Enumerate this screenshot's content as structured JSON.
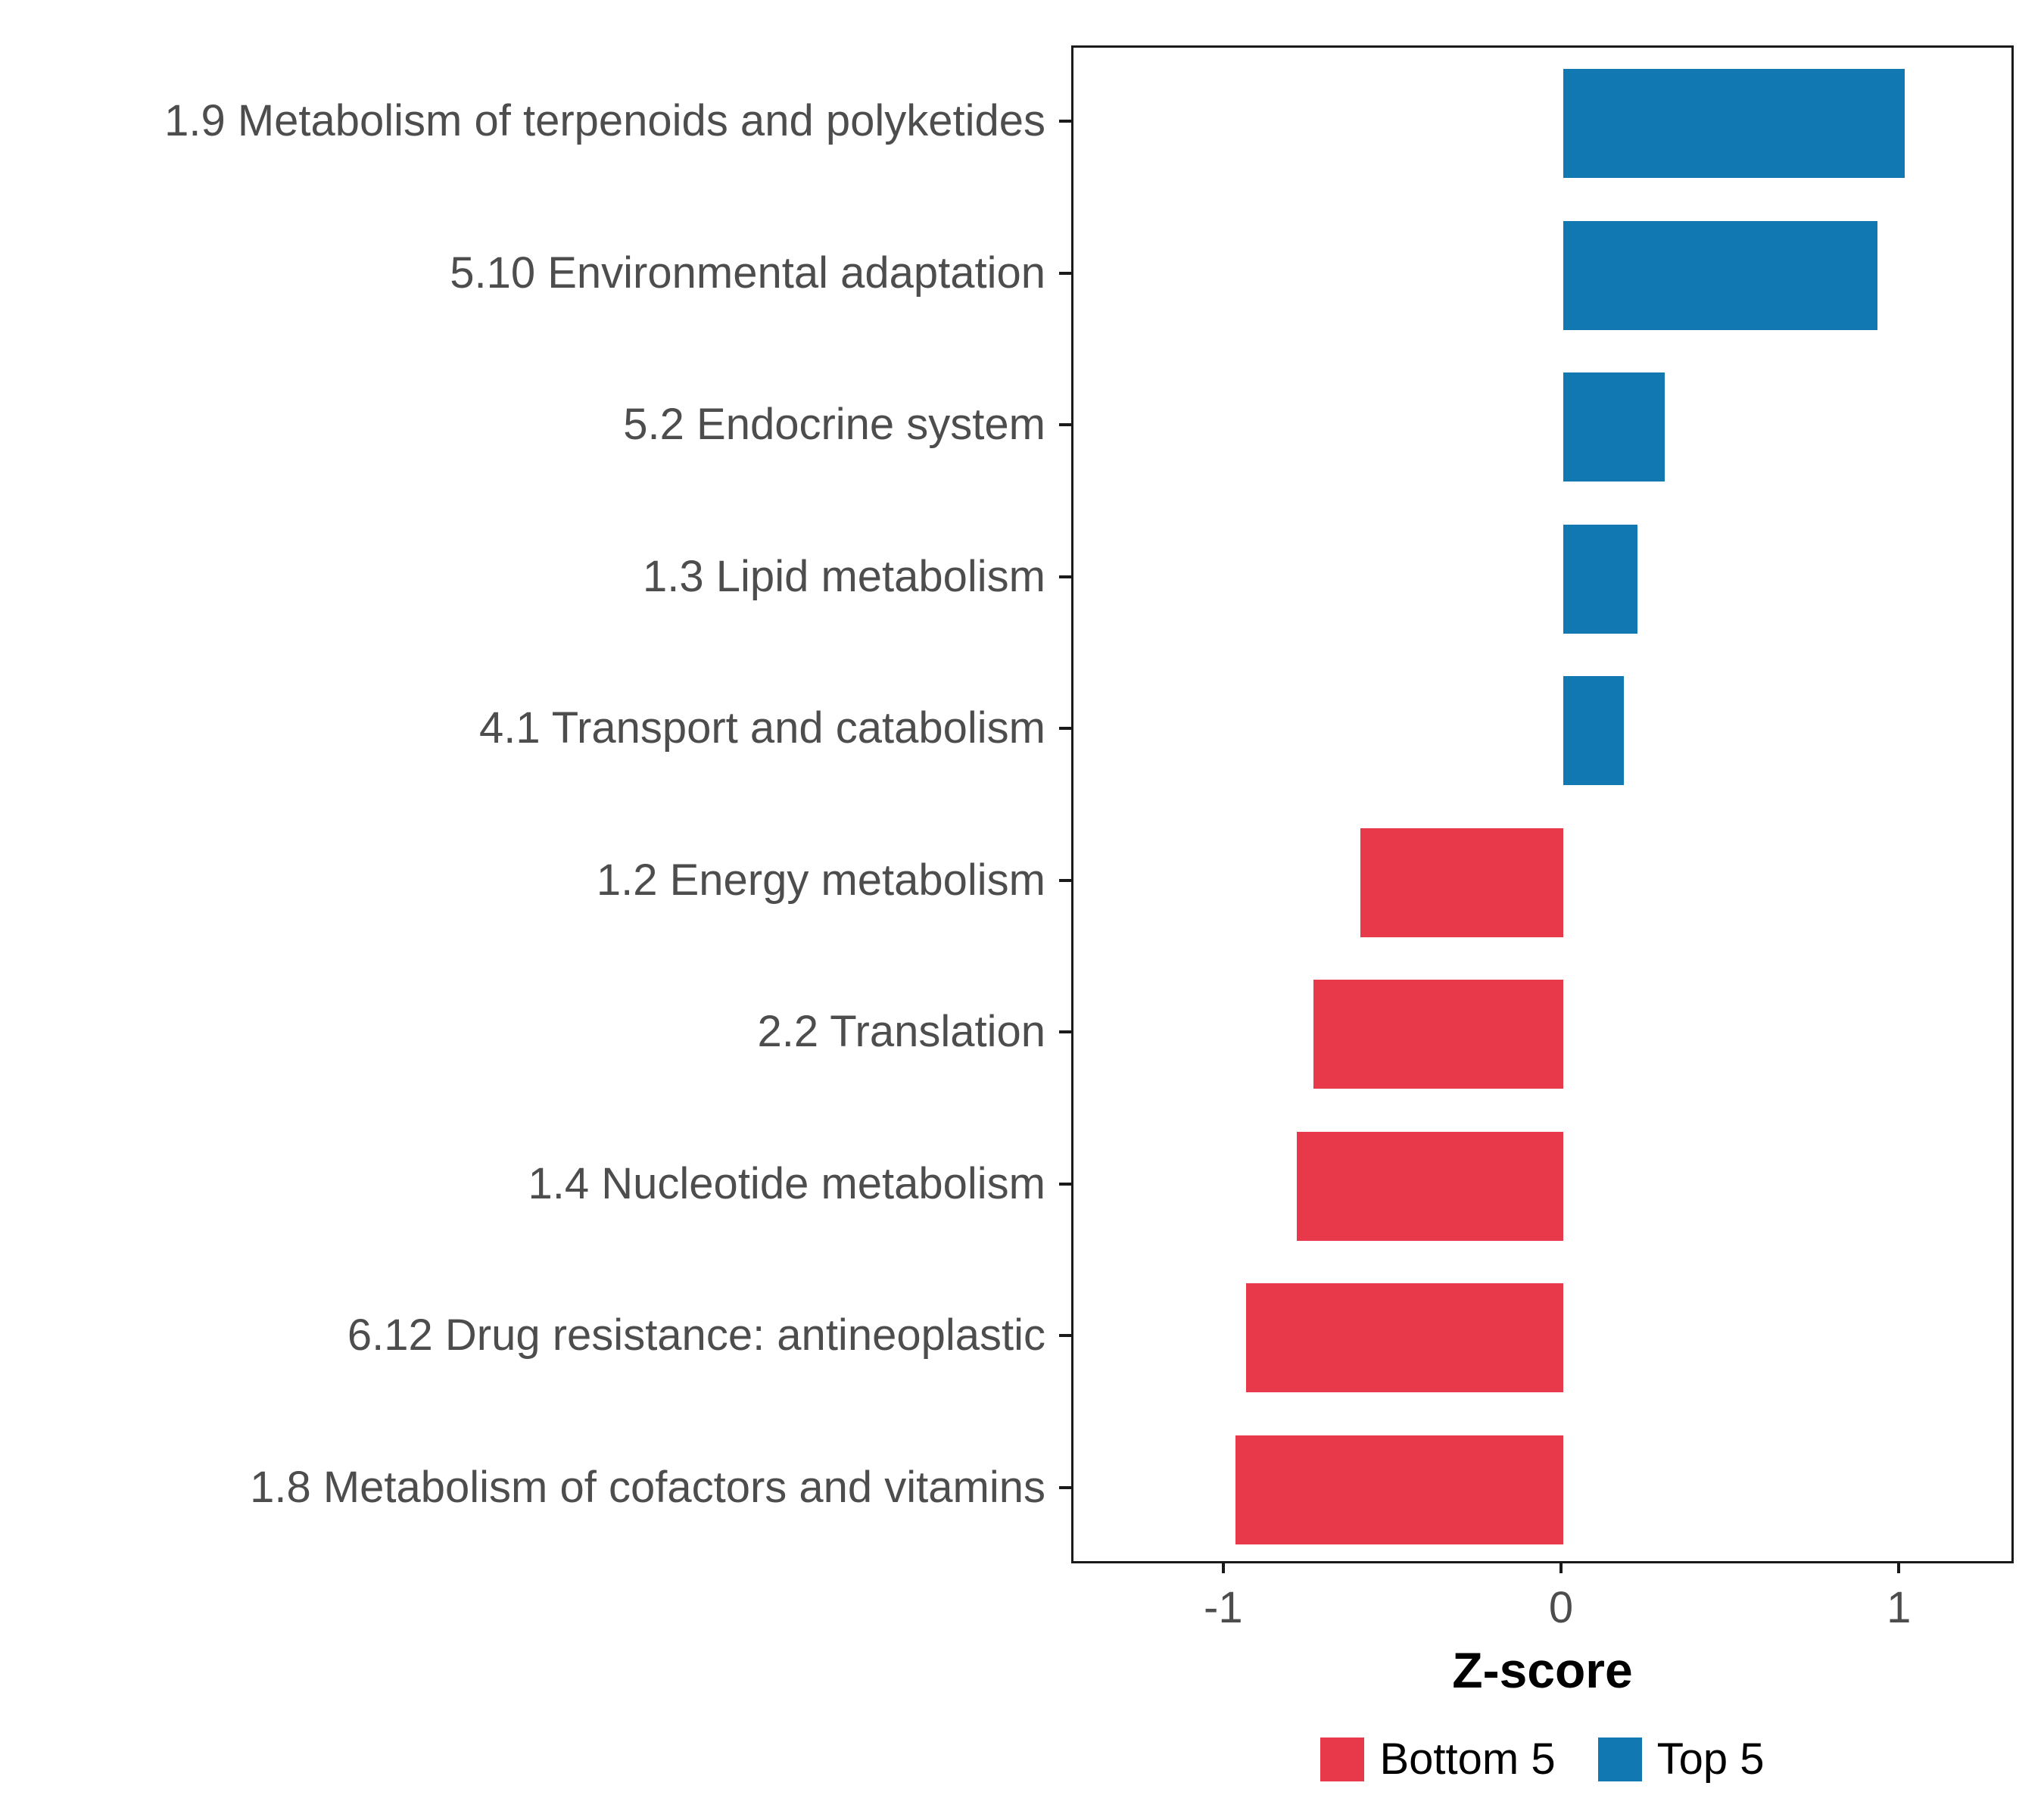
{
  "chart_data": {
    "type": "bar",
    "orientation": "horizontal",
    "title": "",
    "xlabel": "Z-score",
    "ylabel": "",
    "xlim": [
      -1.45,
      1.34
    ],
    "xticks": [
      "-1",
      "0",
      "1"
    ],
    "xtick_values": [
      -1,
      0,
      1
    ],
    "grid": false,
    "legend_position": "bottom",
    "legend": [
      {
        "label": "Bottom 5",
        "color": "#e8394a"
      },
      {
        "label": "Top 5",
        "color": "#1278b2"
      }
    ],
    "bars": [
      {
        "label": "1.9 Metabolism of terpenoids and polyketides",
        "value": 1.01,
        "group": "Top 5"
      },
      {
        "label": "5.10 Environmental adaptation",
        "value": 0.93,
        "group": "Top 5"
      },
      {
        "label": "5.2 Endocrine system",
        "value": 0.3,
        "group": "Top 5"
      },
      {
        "label": "1.3 Lipid metabolism",
        "value": 0.22,
        "group": "Top 5"
      },
      {
        "label": "4.1 Transport and catabolism",
        "value": 0.18,
        "group": "Top 5"
      },
      {
        "label": "1.2 Energy metabolism",
        "value": -0.6,
        "group": "Bottom 5"
      },
      {
        "label": "2.2 Translation",
        "value": -0.74,
        "group": "Bottom 5"
      },
      {
        "label": "1.4 Nucleotide metabolism",
        "value": -0.79,
        "group": "Bottom 5"
      },
      {
        "label": "6.12 Drug resistance: antineoplastic",
        "value": -0.94,
        "group": "Bottom 5"
      },
      {
        "label": "1.8 Metabolism of cofactors and vitamins",
        "value": -0.97,
        "group": "Bottom 5"
      }
    ]
  },
  "colors": {
    "bottom5": "#e8394a",
    "top5": "#1278b2",
    "axis_text": "#4d4d4d",
    "panel_border": "#1a1a1a"
  }
}
